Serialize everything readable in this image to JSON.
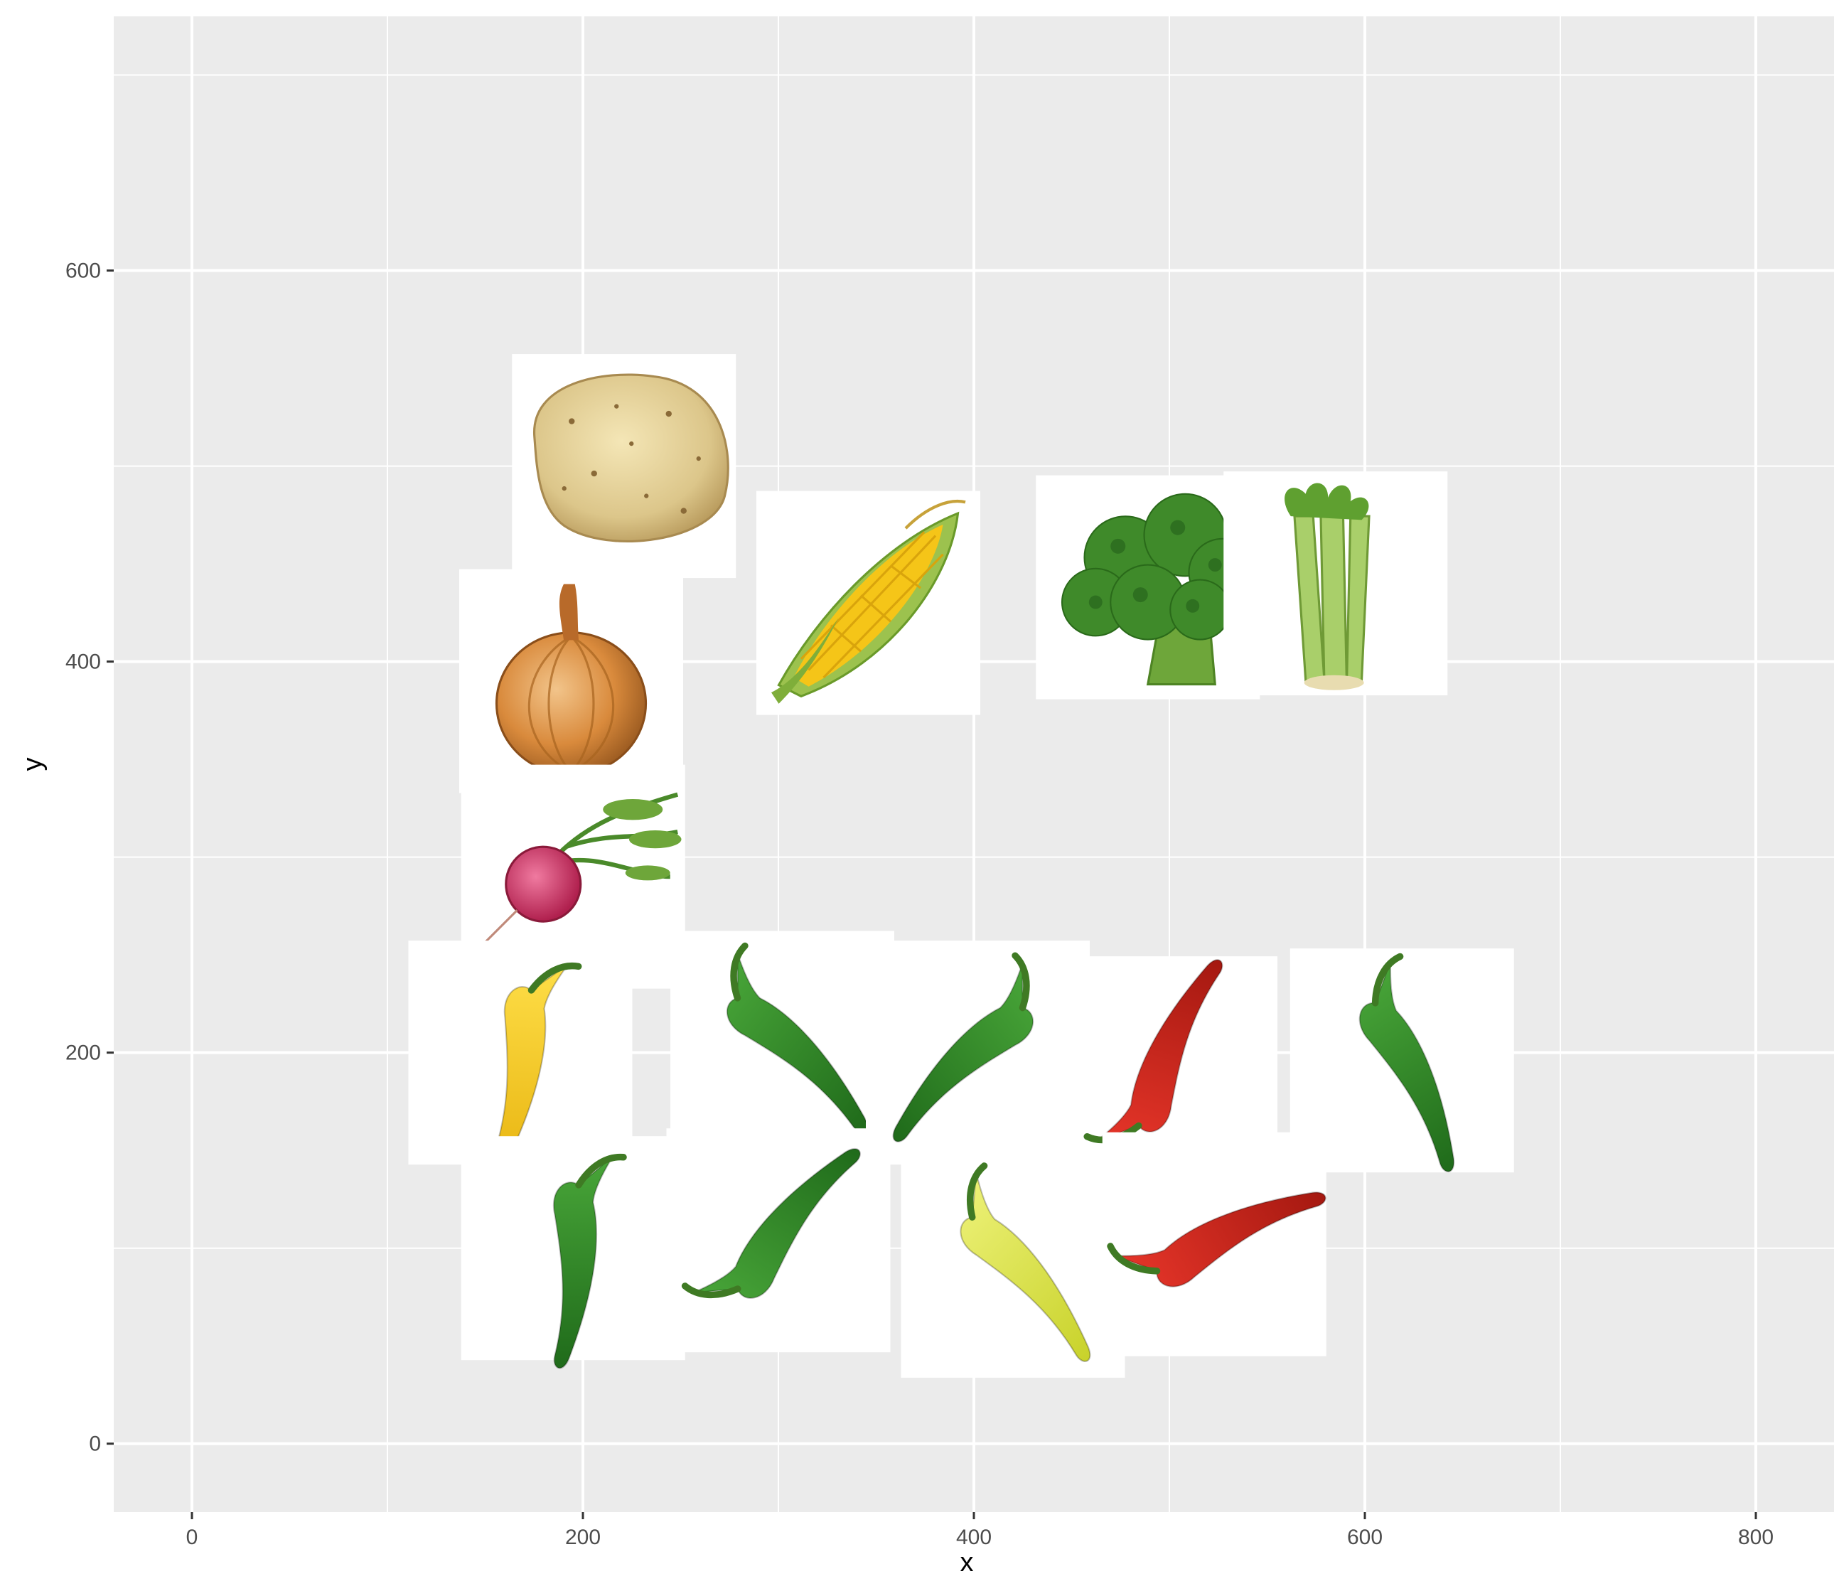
{
  "chart_data": {
    "type": "scatter",
    "title": "",
    "xlabel": "x",
    "ylabel": "y",
    "xlim": [
      -40,
      840
    ],
    "ylim": [
      -35,
      730
    ],
    "x_ticks": [
      0,
      200,
      400,
      600,
      800
    ],
    "x_tick_labels": [
      "0",
      "200",
      "400",
      "600",
      "800"
    ],
    "y_ticks": [
      0,
      200,
      400,
      600
    ],
    "y_tick_labels": [
      "0",
      "200",
      "400",
      "600"
    ],
    "x_minor": [
      100,
      300,
      500,
      700
    ],
    "y_minor": [
      100,
      300,
      500,
      700
    ],
    "grid": true,
    "marker": "vegetable images",
    "colors": {
      "panel_bg": "#ebebeb",
      "grid": "#ffffff",
      "tile_bg": "#ffffff",
      "tick_text": "#4d4d4d",
      "axis_title_text": "#000000"
    },
    "points": [
      {
        "icon": "potato-icon",
        "x": 221,
        "y": 500
      },
      {
        "icon": "corn-icon",
        "x": 346,
        "y": 430
      },
      {
        "icon": "broccoli-icon",
        "x": 489,
        "y": 438
      },
      {
        "icon": "celery-icon",
        "x": 585,
        "y": 440
      },
      {
        "icon": "onion-icon",
        "x": 194,
        "y": 390
      },
      {
        "icon": "radish-icon",
        "x": 195,
        "y": 290
      },
      {
        "icon": "yellow-pepper-icon",
        "x": 168,
        "y": 200
      },
      {
        "icon": "green-chili-icon",
        "x": 302,
        "y": 205
      },
      {
        "icon": "jalapeno-icon",
        "x": 402,
        "y": 200
      },
      {
        "icon": "red-chili-icon",
        "x": 498,
        "y": 192
      },
      {
        "icon": "dark-green-pepper-icon",
        "x": 619,
        "y": 196
      },
      {
        "icon": "long-green-pepper-icon",
        "x": 195,
        "y": 100
      },
      {
        "icon": "curved-green-chili-icon",
        "x": 300,
        "y": 104
      },
      {
        "icon": "banana-pepper-icon",
        "x": 420,
        "y": 91
      },
      {
        "icon": "red-cayenne-icon",
        "x": 523,
        "y": 102
      }
    ]
  }
}
